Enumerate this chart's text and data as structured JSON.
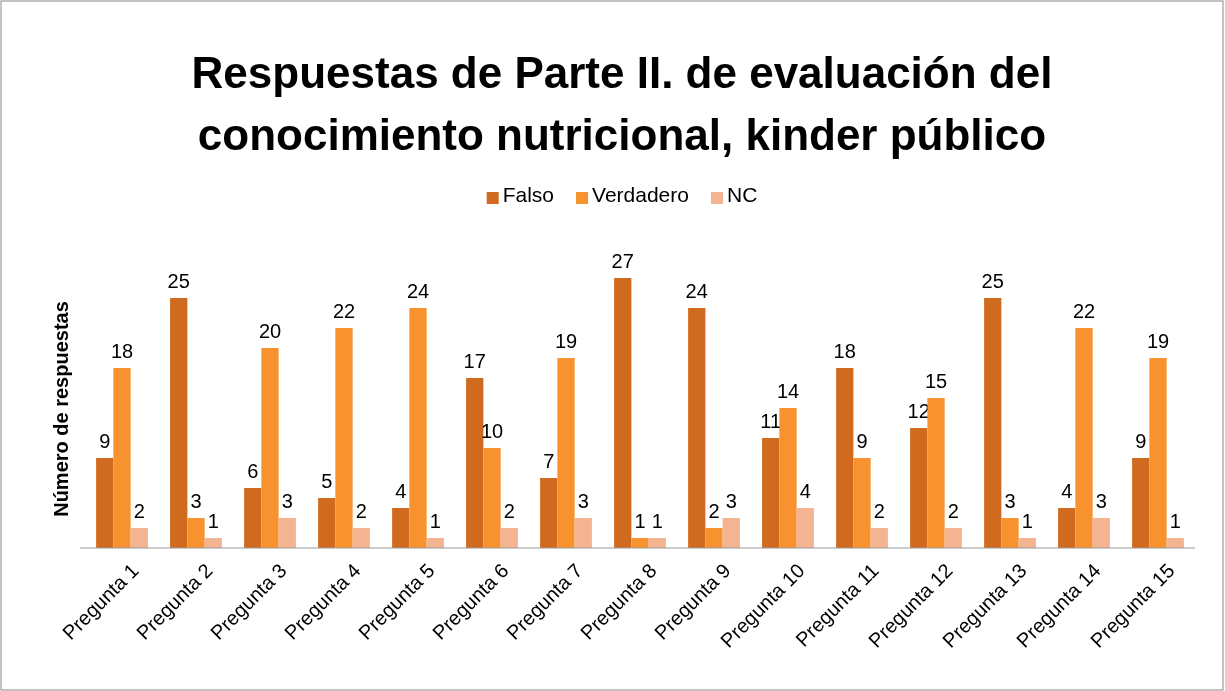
{
  "chart_data": {
    "type": "bar",
    "title": "Respuestas de Parte II. de evaluación del conocimiento nutricional, kinder público",
    "ylabel": "Número de respuestas",
    "categories": [
      "Pregunta 1",
      "Pregunta 2",
      "Pregunta 3",
      "Pregunta 4",
      "Pregunta 5",
      "Pregunta 6",
      "Pregunta 7",
      "Pregunta 8",
      "Pregunta 9",
      "Pregunta 10",
      "Pregunta 11",
      "Pregunta 12",
      "Pregunta 13",
      "Pregunta 14",
      "Pregunta 15"
    ],
    "series": [
      {
        "name": "Falso",
        "color": "#d06a1e",
        "values": [
          9,
          25,
          6,
          5,
          4,
          17,
          7,
          27,
          24,
          11,
          18,
          12,
          25,
          4,
          9
        ]
      },
      {
        "name": "Verdadero",
        "color": "#f7922e",
        "values": [
          18,
          3,
          20,
          22,
          24,
          10,
          19,
          1,
          2,
          14,
          9,
          15,
          3,
          22,
          19
        ]
      },
      {
        "name": "NC",
        "color": "#f4b491",
        "values": [
          2,
          1,
          3,
          2,
          1,
          2,
          3,
          1,
          3,
          4,
          2,
          2,
          1,
          3,
          1
        ]
      }
    ],
    "data_labels": true,
    "legend": "top"
  }
}
